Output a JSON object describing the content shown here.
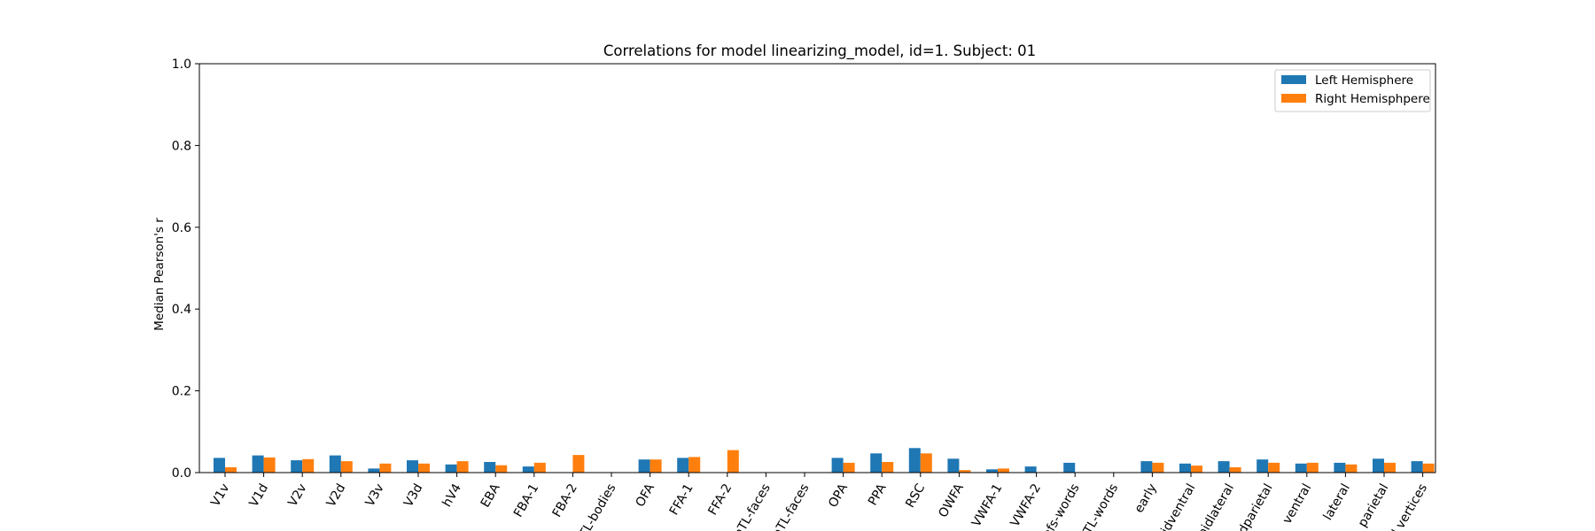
{
  "chart_data": {
    "type": "bar",
    "title": "Correlations for model linearizing_model, id=1. Subject: 01",
    "xlabel": "",
    "ylabel": "Median Pearson's r",
    "ylim": [
      0.0,
      1.0
    ],
    "yticks": [
      0.0,
      0.2,
      0.4,
      0.6,
      0.8,
      1.0
    ],
    "ytick_labels": [
      "0.0",
      "0.2",
      "0.4",
      "0.6",
      "0.8",
      "1.0"
    ],
    "grid": false,
    "legend_position": "top-right",
    "categories": [
      "V1v",
      "V1d",
      "V2v",
      "V2d",
      "V3v",
      "V3d",
      "hV4",
      "EBA",
      "FBA-1",
      "FBA-2",
      "mTL-bodies",
      "OFA",
      "FFA-1",
      "FFA-2",
      "mTL-faces",
      "aTL-faces",
      "OPA",
      "PPA",
      "RSC",
      "OWFA",
      "VWFA-1",
      "VWFA-2",
      "mfs-words",
      "mTL-words",
      "early",
      "midventral",
      "midlateral",
      "midparietal",
      "ventral",
      "lateral",
      "parietal",
      "all vertices"
    ],
    "series": [
      {
        "name": "Left Hemisphere",
        "color": "#1f77b4",
        "values": [
          0.036,
          0.042,
          0.03,
          0.042,
          0.01,
          0.03,
          0.02,
          0.026,
          0.015,
          null,
          null,
          0.032,
          0.036,
          null,
          null,
          null,
          0.036,
          0.047,
          0.06,
          0.034,
          0.008,
          0.015,
          0.024,
          null,
          0.028,
          0.022,
          0.028,
          0.032,
          0.022,
          0.024,
          0.034,
          0.028
        ]
      },
      {
        "name": "Right Hemisphpere",
        "color": "#ff7f0e",
        "values": [
          0.013,
          0.037,
          0.033,
          0.028,
          0.022,
          0.022,
          0.028,
          0.018,
          0.024,
          0.043,
          null,
          0.032,
          0.038,
          0.055,
          null,
          null,
          0.024,
          0.026,
          0.047,
          0.006,
          0.01,
          null,
          null,
          null,
          0.024,
          0.017,
          0.013,
          0.024,
          0.024,
          0.02,
          0.024,
          0.022
        ]
      }
    ]
  }
}
